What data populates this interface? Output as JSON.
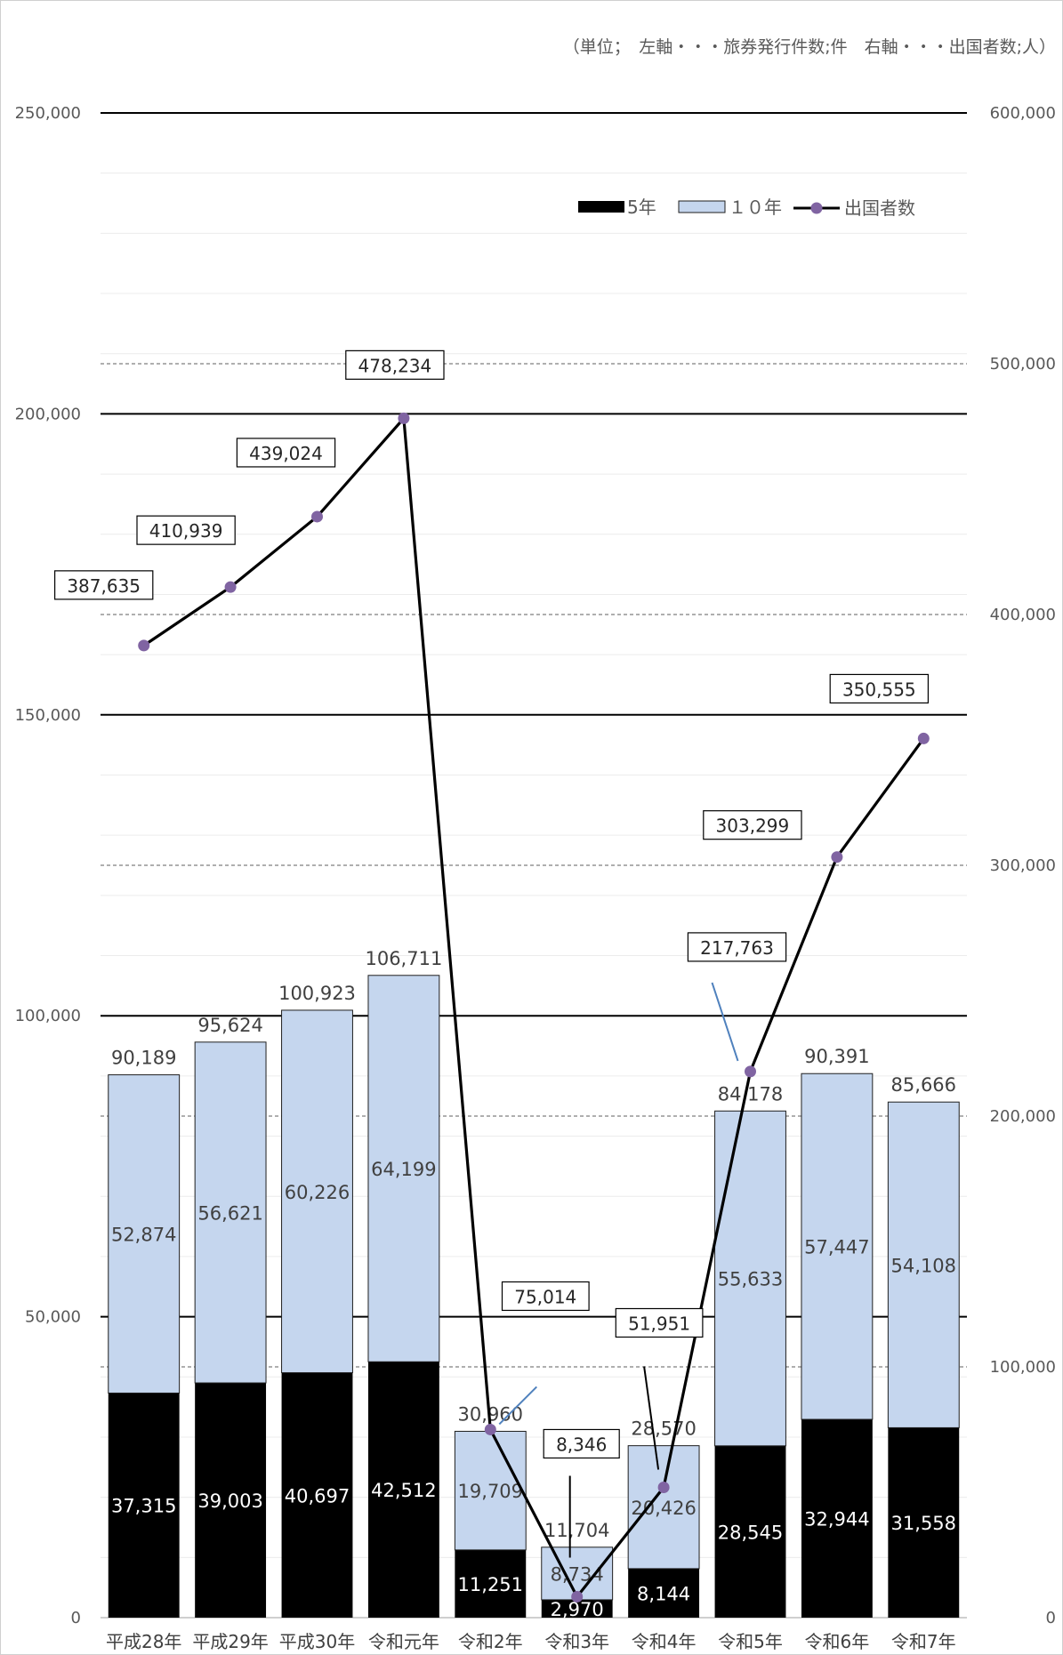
{
  "chart_data": {
    "type": "bar",
    "unit_note": "（単位；　左軸・・・旅券発行件数;件　右軸・・・出国者数;人）",
    "categories": [
      "平成28年",
      "平成29年",
      "平成30年",
      "令和元年",
      "令和2年",
      "令和3年",
      "令和4年",
      "令和5年",
      "令和6年",
      "令和7年"
    ],
    "series": [
      {
        "name": "5年",
        "kind": "bar",
        "color": "#000000",
        "values": [
          37315,
          39003,
          40697,
          42512,
          11251,
          2970,
          8144,
          28545,
          32944,
          31558
        ],
        "labels": [
          "37,315",
          "39,003",
          "40,697",
          "42,512",
          "11,251",
          "2,970",
          "8,144",
          "28,545",
          "32,944",
          "31,558"
        ]
      },
      {
        "name": "１０年",
        "kind": "bar",
        "color": "#c5d6ee",
        "values": [
          52874,
          56621,
          60226,
          64199,
          19709,
          8734,
          20426,
          55633,
          57447,
          54108
        ],
        "labels": [
          "52,874",
          "56,621",
          "60,226",
          "64,199",
          "19,709",
          "8,734",
          "20,426",
          "55,633",
          "57,447",
          "54,108"
        ]
      },
      {
        "name": "出国者数",
        "kind": "line",
        "axis": "right",
        "color": "#000000",
        "marker_color": "#8064a2",
        "values": [
          387635,
          410939,
          439024,
          478234,
          75014,
          8346,
          51951,
          217763,
          303299,
          350555
        ],
        "labels": [
          "387,635",
          "410,939",
          "439,024",
          "478,234",
          "75,014",
          "8,346",
          "51,951",
          "217,763",
          "303,299",
          "350,555"
        ]
      }
    ],
    "totals": [
      90189,
      95624,
      100923,
      106711,
      30960,
      11704,
      28570,
      84178,
      90391,
      85666
    ],
    "total_labels": [
      "90,189",
      "95,624",
      "100,923",
      "106,711",
      "30,960",
      "11,704",
      "28,570",
      "84,178",
      "90,391",
      "85,666"
    ],
    "y_left": {
      "min": 0,
      "max": 250000,
      "ticks": [
        0,
        50000,
        100000,
        150000,
        200000,
        250000
      ],
      "tick_labels": [
        "0",
        "50,000",
        "100,000",
        "150,000",
        "200,000",
        "250,000"
      ]
    },
    "y_right": {
      "min": 0,
      "max": 600000,
      "ticks": [
        0,
        100000,
        200000,
        300000,
        400000,
        500000,
        600000
      ],
      "tick_labels": [
        "0",
        "100,000",
        "200,000",
        "300,000",
        "400,000",
        "500,000",
        "600,000"
      ]
    },
    "grid": true,
    "legend_position": "top-right"
  }
}
